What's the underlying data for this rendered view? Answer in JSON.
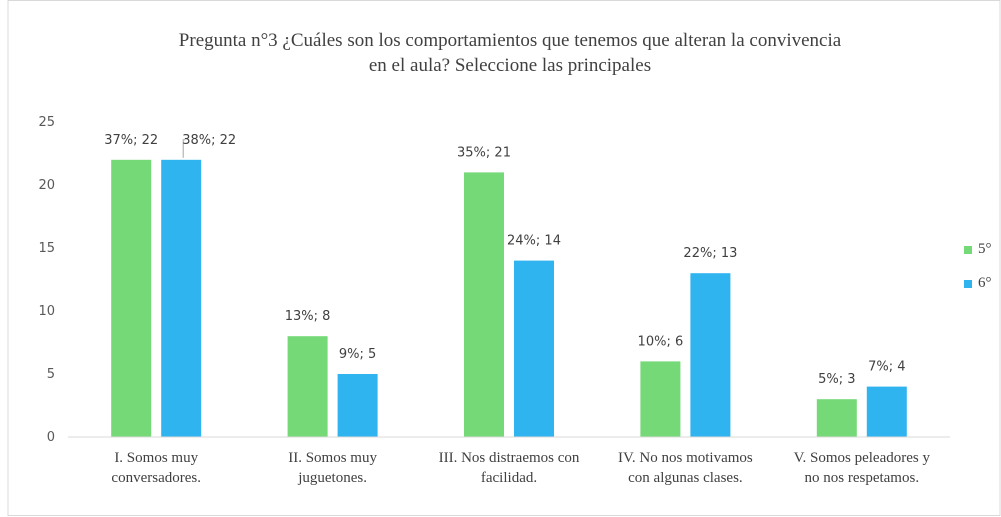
{
  "chart_data": {
    "type": "bar",
    "title": "Pregunta n°3 ¿Cuáles son los comportamientos que tenemos que alteran la convivencia\nen el aula? Seleccione las principales",
    "categories": [
      "I. Somos muy\nconversadores.",
      "II. Somos muy\njuguetones.",
      "III. Nos distraemos con\nfacilidad.",
      "IV. No nos motivamos\ncon algunas clases.",
      "V. Somos peleadores y\nno nos respetamos."
    ],
    "series": [
      {
        "name": "5°",
        "color": "#75d977",
        "values": [
          22,
          8,
          21,
          6,
          3
        ],
        "value_labels": [
          "37%; 22",
          "13%; 8",
          "35%; 21",
          "10%; 6",
          "5%; 3"
        ]
      },
      {
        "name": "6°",
        "color": "#30b4ef",
        "values": [
          22,
          5,
          14,
          13,
          4
        ],
        "value_labels": [
          "38%; 22",
          "9%; 5",
          "24%; 14",
          "22%; 13",
          "7%; 4"
        ]
      }
    ],
    "ylim": [
      0,
      25
    ],
    "yticks": [
      0,
      5,
      10,
      15,
      20,
      25
    ],
    "grid": false,
    "legend": "right"
  }
}
